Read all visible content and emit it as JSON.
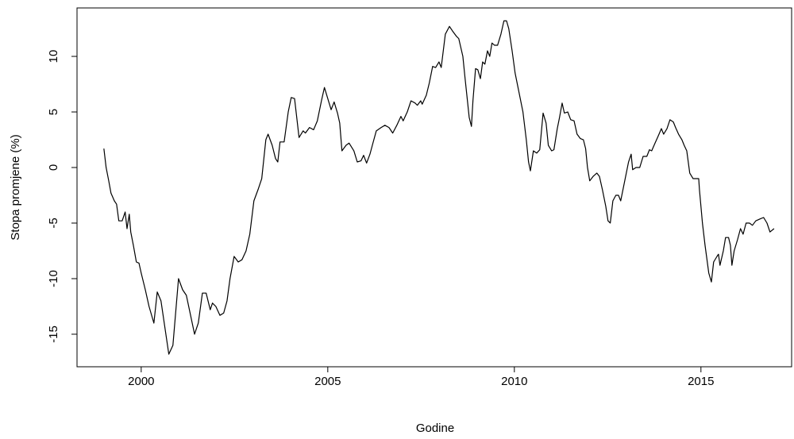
{
  "chart_data": {
    "type": "line",
    "x_label": "Godine",
    "y_label": "Stopa promjene (%)",
    "xlim": [
      1998.28,
      2017.43
    ],
    "ylim": [
      -17.93,
      14.36
    ],
    "xticks": [
      2000,
      2005,
      2010,
      2015
    ],
    "yticks": [
      -15,
      -10,
      -5,
      0,
      5,
      10
    ],
    "color": "#000000",
    "x": [
      1999.0,
      1999.06,
      1999.13,
      1999.19,
      1999.28,
      1999.34,
      1999.4,
      1999.49,
      1999.57,
      1999.62,
      1999.68,
      1999.72,
      1999.79,
      1999.87,
      1999.94,
      2000.0,
      2000.11,
      2000.21,
      2000.34,
      2000.43,
      2000.53,
      2000.74,
      2000.85,
      2001.0,
      2001.11,
      2001.21,
      2001.43,
      2001.53,
      2001.64,
      2001.74,
      2001.85,
      2001.91,
      2002.0,
      2002.11,
      2002.21,
      2002.3,
      2002.38,
      2002.49,
      2002.6,
      2002.7,
      2002.81,
      2002.91,
      2003.02,
      2003.13,
      2003.23,
      2003.34,
      2003.4,
      2003.51,
      2003.6,
      2003.66,
      2003.72,
      2003.83,
      2003.94,
      2004.02,
      2004.11,
      2004.23,
      2004.34,
      2004.4,
      2004.51,
      2004.62,
      2004.72,
      2004.83,
      2004.91,
      2005.0,
      2005.09,
      2005.17,
      2005.26,
      2005.32,
      2005.38,
      2005.49,
      2005.57,
      2005.7,
      2005.79,
      2005.89,
      2005.96,
      2006.04,
      2006.13,
      2006.21,
      2006.3,
      2006.43,
      2006.53,
      2006.64,
      2006.74,
      2006.85,
      2006.96,
      2007.02,
      2007.13,
      2007.23,
      2007.34,
      2007.4,
      2007.49,
      2007.53,
      2007.64,
      2007.72,
      2007.81,
      2007.89,
      2007.98,
      2008.04,
      2008.15,
      2008.26,
      2008.34,
      2008.45,
      2008.51,
      2008.62,
      2008.68,
      2008.79,
      2008.85,
      2008.89,
      2008.96,
      2009.02,
      2009.09,
      2009.15,
      2009.21,
      2009.28,
      2009.34,
      2009.4,
      2009.47,
      2009.55,
      2009.64,
      2009.72,
      2009.79,
      2009.85,
      2009.94,
      2010.02,
      2010.11,
      2010.17,
      2010.23,
      2010.32,
      2010.38,
      2010.43,
      2010.51,
      2010.6,
      2010.68,
      2010.77,
      2010.85,
      2010.91,
      2011.0,
      2011.06,
      2011.15,
      2011.21,
      2011.28,
      2011.34,
      2011.43,
      2011.51,
      2011.6,
      2011.68,
      2011.77,
      2011.85,
      2011.91,
      2011.96,
      2012.02,
      2012.11,
      2012.21,
      2012.28,
      2012.36,
      2012.45,
      2012.51,
      2012.57,
      2012.64,
      2012.72,
      2012.79,
      2012.85,
      2012.94,
      2013.0,
      2013.06,
      2013.13,
      2013.17,
      2013.26,
      2013.36,
      2013.45,
      2013.55,
      2013.62,
      2013.68,
      2013.77,
      2013.85,
      2013.94,
      2014.0,
      2014.09,
      2014.17,
      2014.26,
      2014.32,
      2014.4,
      2014.49,
      2014.55,
      2014.62,
      2014.7,
      2014.79,
      2014.87,
      2014.94,
      2014.96,
      2015.04,
      2015.11,
      2015.21,
      2015.28,
      2015.34,
      2015.43,
      2015.47,
      2015.51,
      2015.6,
      2015.66,
      2015.74,
      2015.79,
      2015.83,
      2015.89,
      2015.98,
      2016.06,
      2016.13,
      2016.21,
      2016.3,
      2016.38,
      2016.47,
      2016.6,
      2016.68,
      2016.77,
      2016.85,
      2016.96
    ],
    "values": [
      1.7,
      0,
      -1.2,
      -2.3,
      -3,
      -3.3,
      -4.8,
      -4.8,
      -4,
      -5.5,
      -4.2,
      -5.8,
      -7,
      -8.5,
      -8.6,
      -9.5,
      -11,
      -12.5,
      -14,
      -11.2,
      -12,
      -16.8,
      -16,
      -10,
      -11,
      -11.5,
      -15,
      -14,
      -11.3,
      -11.3,
      -12.8,
      -12.2,
      -12.5,
      -13.3,
      -13.1,
      -12,
      -10,
      -8,
      -8.5,
      -8.3,
      -7.5,
      -6,
      -3,
      -2,
      -1,
      2.5,
      3,
      2,
      0.8,
      0.5,
      2.3,
      2.3,
      5,
      6.3,
      6.2,
      2.7,
      3.3,
      3.1,
      3.6,
      3.4,
      4.2,
      6,
      7.2,
      6.2,
      5.2,
      5.9,
      4.9,
      4,
      1.5,
      2,
      2.2,
      1.5,
      0.5,
      0.6,
      1.1,
      0.4,
      1.2,
      2.2,
      3.3,
      3.6,
      3.8,
      3.6,
      3.1,
      3.8,
      4.6,
      4.2,
      5,
      6,
      5.8,
      5.6,
      6,
      5.7,
      6.5,
      7.6,
      9.1,
      9,
      9.5,
      9,
      12,
      12.7,
      12.3,
      11.8,
      11.6,
      10,
      8,
      4.5,
      3.7,
      6,
      8.9,
      8.8,
      8,
      9.5,
      9.3,
      10.5,
      10,
      11.2,
      11,
      11,
      12,
      13.2,
      13.2,
      12.5,
      10.5,
      8.5,
      7,
      6,
      5,
      2.5,
      0.5,
      -0.3,
      1.5,
      1.3,
      1.6,
      4.9,
      4,
      2,
      1.5,
      1.6,
      3.5,
      4.5,
      5.8,
      4.9,
      5,
      4.3,
      4.2,
      3,
      2.6,
      2.5,
      1.7,
      0,
      -1.2,
      -0.8,
      -0.5,
      -0.8,
      -2,
      -3.5,
      -4.8,
      -5,
      -3,
      -2.5,
      -2.5,
      -3,
      -1.5,
      -0.5,
      0.5,
      1.2,
      -0.2,
      0,
      0,
      1,
      1,
      1.6,
      1.5,
      2.2,
      2.8,
      3.5,
      3,
      3.5,
      4.3,
      4.1,
      3.6,
      3,
      2.5,
      2,
      1.5,
      -0.5,
      -1,
      -1,
      -1,
      -2,
      -5,
      -7,
      -9.5,
      -10.3,
      -8.5,
      -8,
      -7.8,
      -8.8,
      -7.5,
      -6.3,
      -6.3,
      -7,
      -8.8,
      -7.5,
      -6.5,
      -5.5,
      -6,
      -5,
      -5,
      -5.2,
      -4.8,
      -4.6,
      -4.5,
      -5,
      -5.8,
      -5.5
    ]
  }
}
